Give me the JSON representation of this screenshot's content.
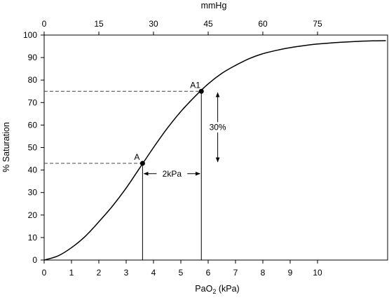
{
  "chart_data": {
    "type": "line",
    "title": "",
    "xlabel": {
      "prefix": "Pa",
      "main": "O",
      "sub": "2",
      "suffix": " (kPa)"
    },
    "ylabel": "% Saturation",
    "top_axis_label": "mmHg",
    "xlim": [
      0,
      12.5
    ],
    "ylim": [
      0,
      100
    ],
    "x_ticks": [
      {
        "value": 0,
        "label": "0"
      },
      {
        "value": 1,
        "label": "1"
      },
      {
        "value": 2,
        "label": "2"
      },
      {
        "value": 3,
        "label": "3"
      },
      {
        "value": 4,
        "label": "4"
      },
      {
        "value": 5,
        "label": "5"
      },
      {
        "value": 6,
        "label": "6"
      },
      {
        "value": 7,
        "label": "7"
      },
      {
        "value": 8,
        "label": "8"
      },
      {
        "value": 9,
        "label": "9"
      },
      {
        "value": 10,
        "label": "10"
      }
    ],
    "top_ticks": [
      {
        "value": 0,
        "label": "0"
      },
      {
        "value": 15,
        "label": "15"
      },
      {
        "value": 30,
        "label": "30"
      },
      {
        "value": 45,
        "label": "45"
      },
      {
        "value": 60,
        "label": "60"
      },
      {
        "value": 75,
        "label": "75"
      }
    ],
    "y_ticks": [
      {
        "value": 0,
        "label": "0"
      },
      {
        "value": 10,
        "label": "10"
      },
      {
        "value": 20,
        "label": "20"
      },
      {
        "value": 30,
        "label": "30"
      },
      {
        "value": 40,
        "label": "40"
      },
      {
        "value": 50,
        "label": "50"
      },
      {
        "value": 60,
        "label": "60"
      },
      {
        "value": 70,
        "label": "70"
      },
      {
        "value": 80,
        "label": "80"
      },
      {
        "value": 90,
        "label": "90"
      },
      {
        "value": 100,
        "label": "100"
      }
    ],
    "series": [
      {
        "x": [
          0,
          0.5,
          1,
          1.5,
          2,
          2.5,
          3,
          3.5,
          4,
          4.5,
          5,
          5.5,
          6,
          6.5,
          7,
          7.5,
          8,
          8.5,
          9,
          9.5,
          10,
          10.5,
          11,
          11.5,
          12,
          12.5
        ],
        "y": [
          0,
          1.8,
          5.5,
          10.5,
          17,
          24,
          32,
          41,
          50,
          58.5,
          66,
          72.5,
          78.3,
          83,
          86.5,
          89.5,
          91.7,
          93.2,
          94.4,
          95.3,
          96,
          96.5,
          96.9,
          97.2,
          97.4,
          97.5
        ]
      }
    ],
    "points": [
      {
        "name": "A",
        "label": "A",
        "x": 3.6,
        "y": 43
      },
      {
        "name": "A1",
        "label": "A1",
        "x": 5.75,
        "y": 75
      }
    ],
    "annotations": {
      "horizontal_span": {
        "from": 3.6,
        "to": 5.75,
        "at_y": 39,
        "label": "2kPa"
      },
      "vertical_span": {
        "from": 43,
        "to": 75,
        "at_x": 6.4,
        "label": "30%"
      }
    },
    "grid": false
  },
  "colors": {
    "curve": "#000000",
    "axes": "#000000",
    "dashed": "#444444"
  }
}
